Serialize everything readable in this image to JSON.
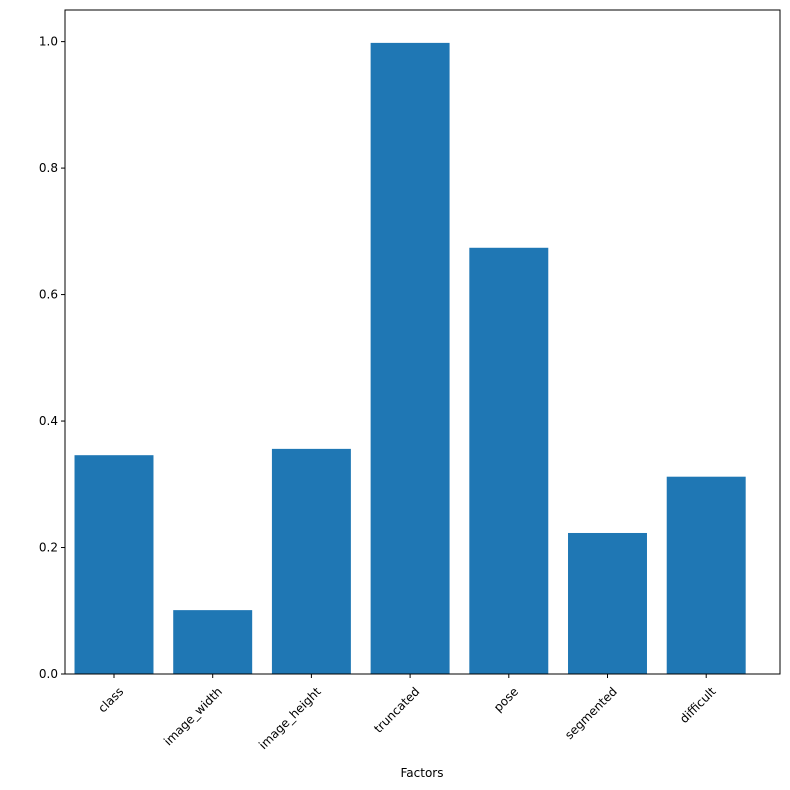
{
  "chart_data": {
    "type": "bar",
    "x_label": "Factors",
    "categories": [
      "class",
      "image_width",
      "image_height",
      "truncated",
      "pose",
      "segmented",
      "difficult"
    ],
    "values": [
      0.346,
      0.101,
      0.356,
      0.998,
      0.674,
      0.223,
      0.312
    ],
    "color": "#1f77b4",
    "ylim": [
      0,
      1.05
    ],
    "yticks": [
      {
        "value": 0,
        "label": "0.0"
      },
      0.2,
      0.4,
      0.6,
      0.8,
      {
        "value": 1,
        "label": "1.0"
      }
    ]
  }
}
